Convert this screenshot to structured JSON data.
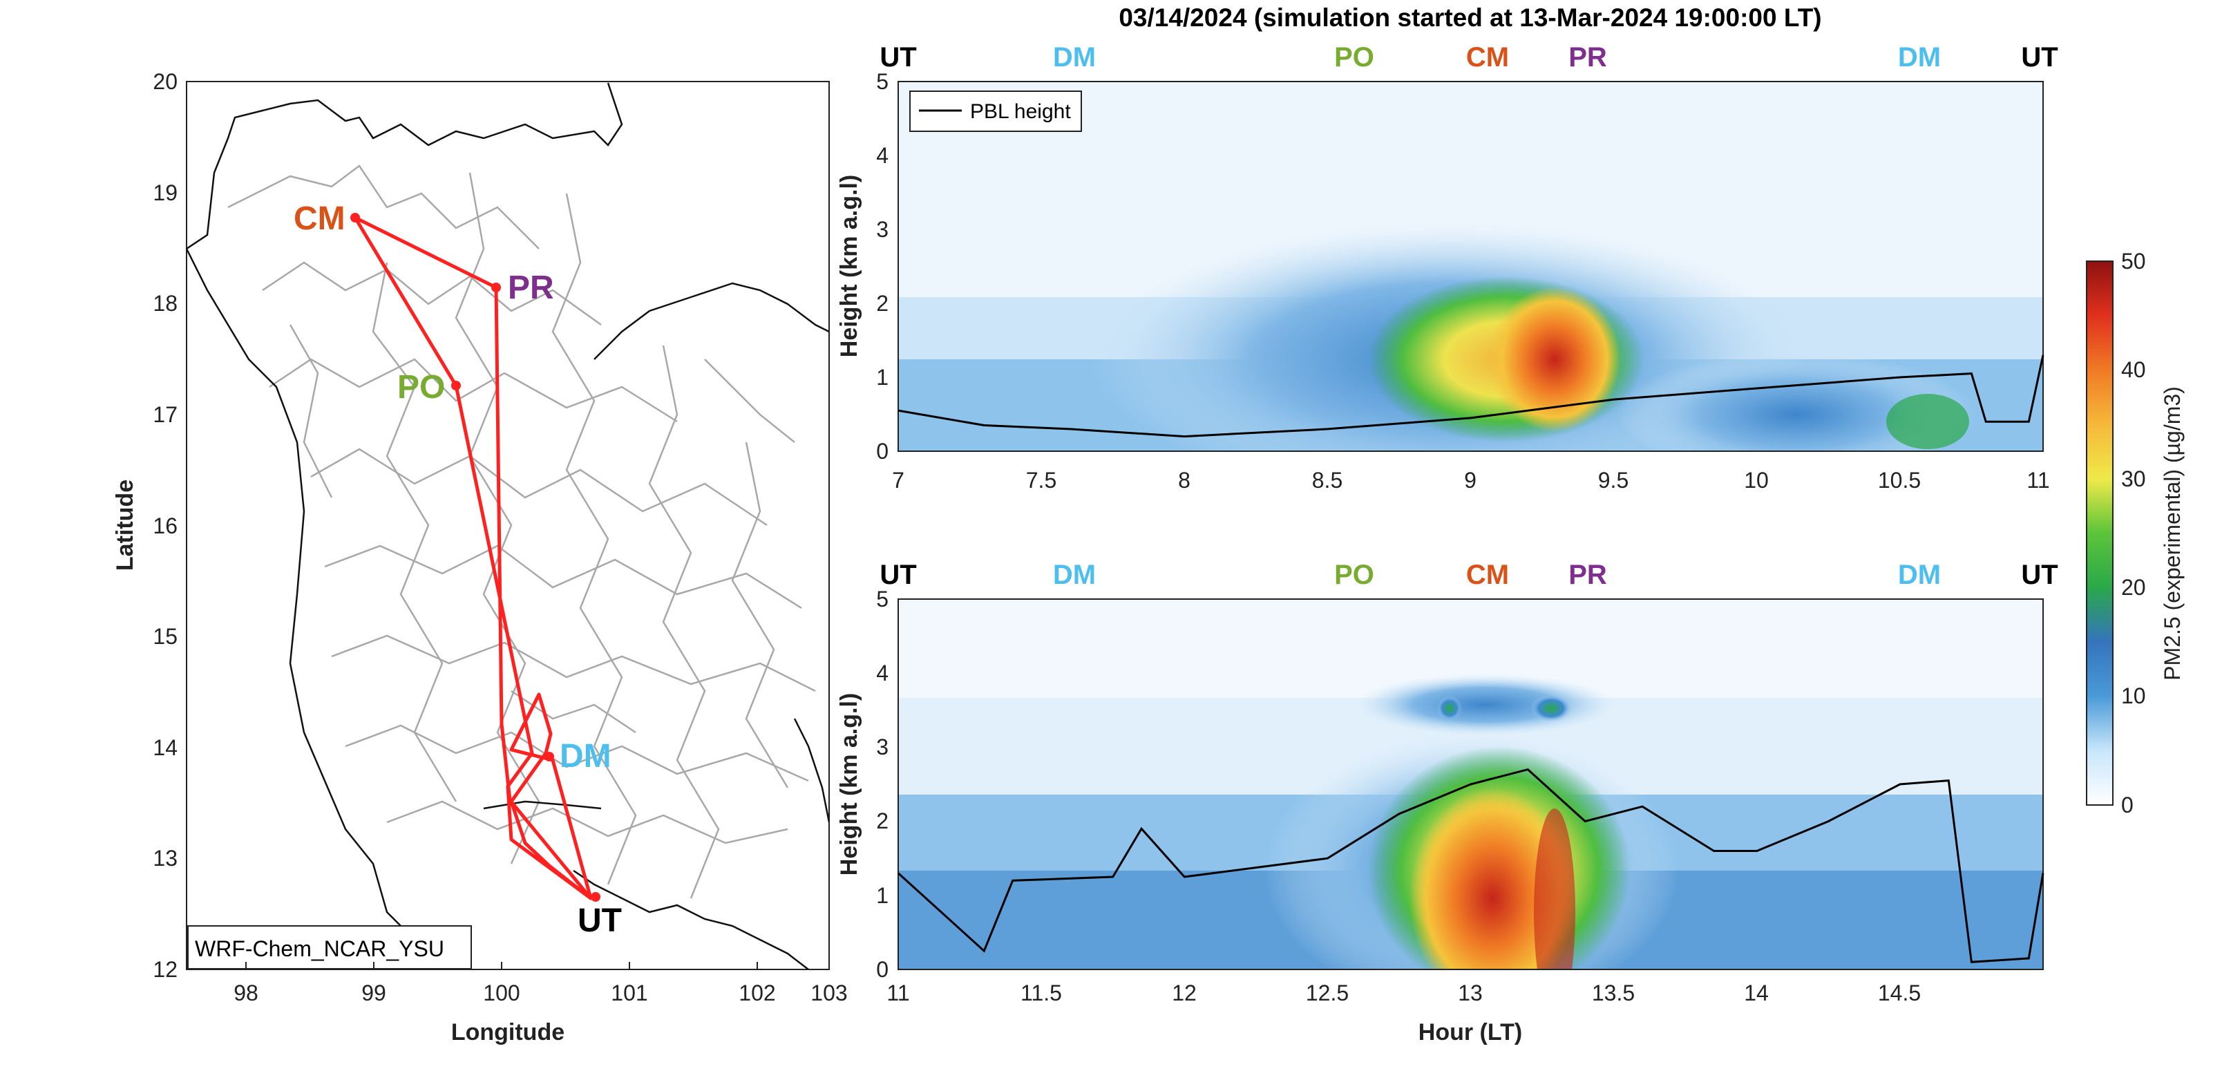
{
  "figure": {
    "title": "03/14/2024 (simulation started at 13-Mar-2024 19:00:00 LT)"
  },
  "map": {
    "xlabel": "Longitude",
    "ylabel": "Latitude",
    "xticks": [
      "98",
      "99",
      "100",
      "101",
      "102",
      "103"
    ],
    "yticks": [
      "12",
      "13",
      "14",
      "15",
      "16",
      "17",
      "18",
      "19",
      "20"
    ],
    "label_box": "WRF-Chem_NCAR_YSU",
    "route": [
      {
        "code": "CM",
        "lon": 98.98,
        "lat": 18.79,
        "color": "#d95319"
      },
      {
        "code": "PR",
        "lon": 100.14,
        "lat": 18.14,
        "color": "#7e2f8e"
      },
      {
        "code": "PO",
        "lon": 99.82,
        "lat": 17.27,
        "color": "#77ac30"
      },
      {
        "code": "DM",
        "lon": 100.6,
        "lat": 13.91,
        "color": "#4dbeee"
      },
      {
        "code": "UT",
        "lon": 101.01,
        "lat": 12.68,
        "color": "#000000"
      }
    ],
    "route_color": "#ff2020"
  },
  "time_height_panels": [
    {
      "ylabel": "Height (km a.g.l)",
      "xrange": [
        7,
        11
      ],
      "ylim": [
        0,
        5
      ],
      "xticks": [
        "7",
        "7.5",
        "8",
        "8.5",
        "9",
        "9.5",
        "10",
        "10.5",
        "11"
      ],
      "yticks": [
        "0",
        "1",
        "2",
        "3",
        "4",
        "5"
      ],
      "legend": "PBL height",
      "site_labels": [
        {
          "text": "UT",
          "color": "#000000"
        },
        {
          "text": "DM",
          "color": "#4dbeee"
        },
        {
          "text": "PO",
          "color": "#77ac30"
        },
        {
          "text": "CM",
          "color": "#d95319"
        },
        {
          "text": "PR",
          "color": "#7e2f8e"
        },
        {
          "text": "DM",
          "color": "#4dbeee"
        },
        {
          "text": "UT",
          "color": "#000000"
        }
      ]
    },
    {
      "ylabel": "Height (km a.g.l)",
      "xlabel": "Hour (LT)",
      "xrange": [
        11,
        15
      ],
      "ylim": [
        0,
        5
      ],
      "xticks": [
        "11",
        "11.5",
        "12",
        "12.5",
        "13",
        "13.5",
        "14",
        "14.5"
      ],
      "yticks": [
        "0",
        "1",
        "2",
        "3",
        "4",
        "5"
      ],
      "site_labels": [
        {
          "text": "UT",
          "color": "#000000"
        },
        {
          "text": "DM",
          "color": "#4dbeee"
        },
        {
          "text": "PO",
          "color": "#77ac30"
        },
        {
          "text": "CM",
          "color": "#d95319"
        },
        {
          "text": "PR",
          "color": "#7e2f8e"
        },
        {
          "text": "DM",
          "color": "#4dbeee"
        },
        {
          "text": "UT",
          "color": "#000000"
        }
      ]
    }
  ],
  "colorbar": {
    "label": "PM2.5 (experimental) (µg/m3)",
    "range": [
      0,
      50
    ],
    "ticks": [
      "0",
      "10",
      "20",
      "30",
      "40",
      "50"
    ]
  },
  "chart_data": [
    {
      "type": "line",
      "x": [
        7.0,
        7.3,
        7.6,
        8.0,
        8.5,
        9.0,
        9.5,
        10.0,
        10.5,
        10.75,
        10.8,
        10.95,
        11.0
      ],
      "series": [
        {
          "name": "PBL height",
          "values": [
            0.55,
            0.35,
            0.3,
            0.2,
            0.3,
            0.45,
            0.7,
            0.85,
            1.0,
            1.05,
            0.4,
            0.4,
            1.3
          ]
        }
      ],
      "ylabel": "Height (km a.g.l)",
      "ylim": [
        0,
        5
      ]
    },
    {
      "type": "line",
      "x": [
        11.0,
        11.3,
        11.4,
        11.75,
        11.85,
        12.0,
        12.5,
        12.75,
        13.0,
        13.2,
        13.4,
        13.6,
        13.85,
        14.0,
        14.25,
        14.5,
        14.67,
        14.75,
        14.95,
        15.0
      ],
      "series": [
        {
          "name": "PBL height",
          "values": [
            1.3,
            0.25,
            1.2,
            1.25,
            1.9,
            1.25,
            1.5,
            2.1,
            2.5,
            2.7,
            2.0,
            2.2,
            1.6,
            1.6,
            2.0,
            2.5,
            2.55,
            0.1,
            0.15,
            1.3
          ]
        }
      ],
      "ylabel": "Height (km a.g.l)",
      "ylim": [
        0,
        5
      ]
    }
  ]
}
